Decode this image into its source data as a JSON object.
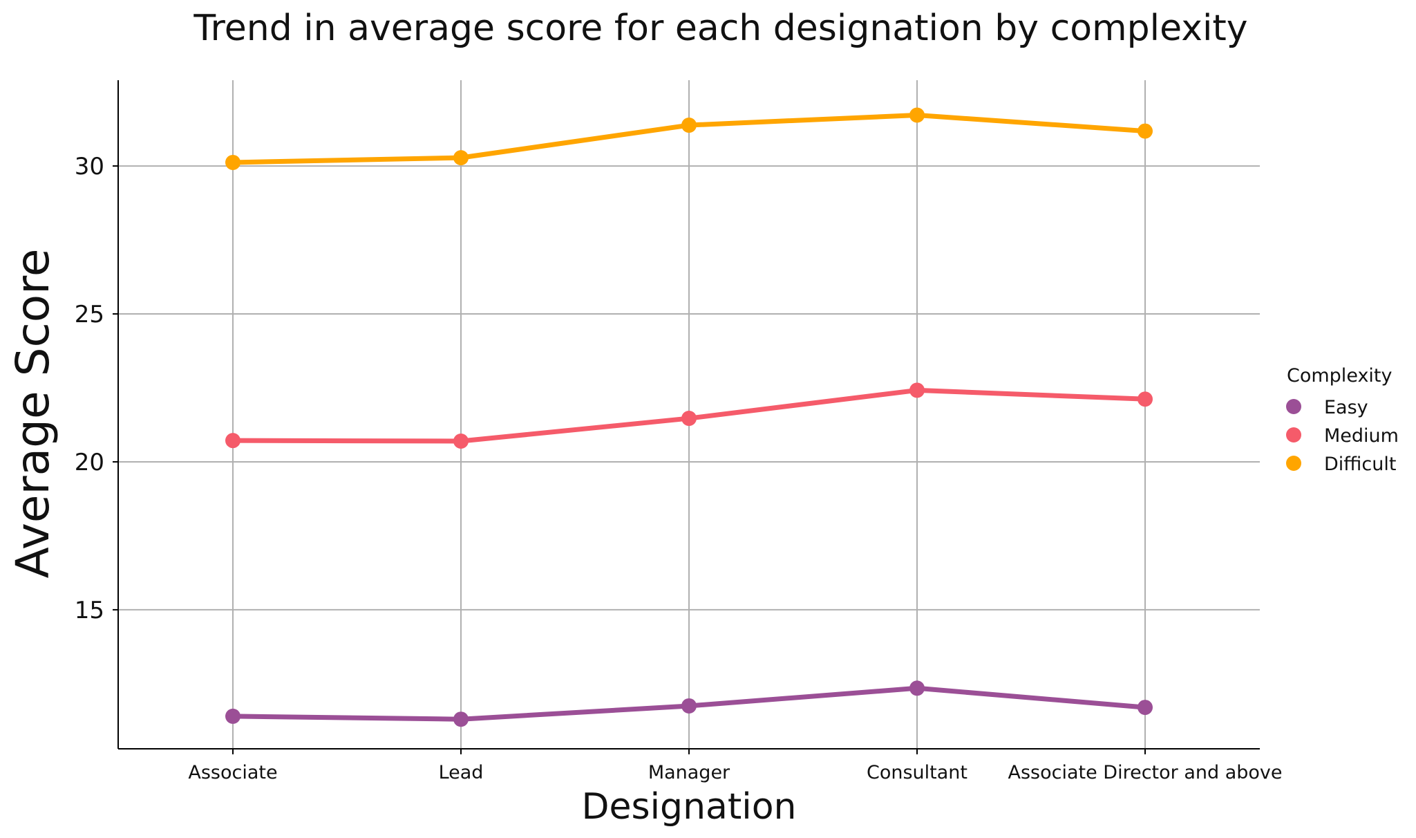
{
  "chart_data": {
    "type": "line",
    "title": "Trend in average score for each designation by complexity",
    "xlabel": "Designation",
    "ylabel": "Average Score",
    "categories": [
      "Associate",
      "Lead",
      "Manager",
      "Consultant",
      "Associate Director and above"
    ],
    "ylim": [
      10.3,
      32.9
    ],
    "yticks": [
      15,
      20,
      25,
      30
    ],
    "grid": true,
    "legend": {
      "title": "Complexity",
      "placement": "center-right, outside plot"
    },
    "series": [
      {
        "name": "Easy",
        "color": "#9b4f96",
        "values": [
          11.4,
          11.3,
          11.75,
          12.35,
          11.7
        ]
      },
      {
        "name": "Medium",
        "color": "#f55b6a",
        "values": [
          20.72,
          20.7,
          21.47,
          22.42,
          22.12
        ]
      },
      {
        "name": "Difficult",
        "color": "#ffa500",
        "values": [
          30.12,
          30.28,
          31.38,
          31.72,
          31.18
        ]
      }
    ]
  }
}
